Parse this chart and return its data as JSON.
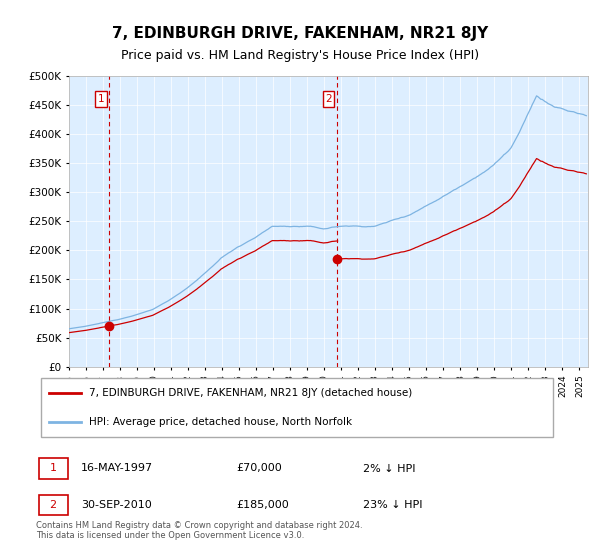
{
  "title": "7, EDINBURGH DRIVE, FAKENHAM, NR21 8JY",
  "subtitle": "Price paid vs. HM Land Registry's House Price Index (HPI)",
  "legend_property": "7, EDINBURGH DRIVE, FAKENHAM, NR21 8JY (detached house)",
  "legend_hpi": "HPI: Average price, detached house, North Norfolk",
  "sale1_date_label": "16-MAY-1997",
  "sale1_price": 70000,
  "sale1_year": 1997.37,
  "sale1_pct": "2% ↓ HPI",
  "sale2_date_label": "30-SEP-2010",
  "sale2_price": 185000,
  "sale2_year": 2010.75,
  "sale2_pct": "23% ↓ HPI",
  "footnote": "Contains HM Land Registry data © Crown copyright and database right 2024.\nThis data is licensed under the Open Government Licence v3.0.",
  "hpi_color": "#7eb4e2",
  "property_color": "#cc0000",
  "vline_color": "#cc0000",
  "plot_bg": "#ddeeff",
  "ylim": [
    0,
    500000
  ],
  "xlim_start": 1995.0,
  "xlim_end": 2025.5,
  "title_fontsize": 11,
  "subtitle_fontsize": 9
}
